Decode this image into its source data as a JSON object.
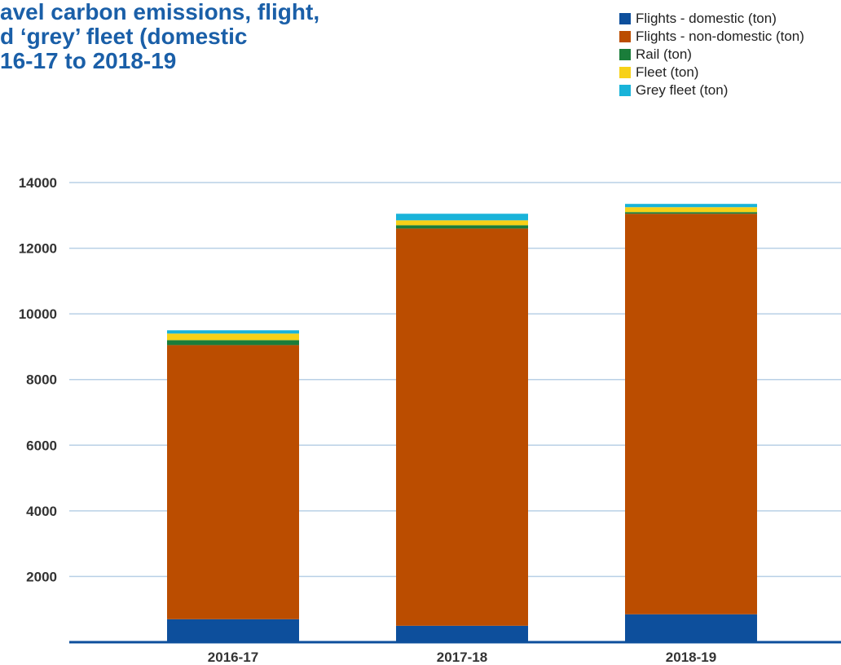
{
  "chart_data": {
    "type": "bar",
    "stacked": true,
    "title_lines": [
      "avel carbon emissions, flight,",
      "d ‘grey’ fleet (domestic",
      "16-17 to 2018-19"
    ],
    "xlabel": "",
    "ylabel": "",
    "ylim": [
      0,
      14000
    ],
    "yticks": [
      2000,
      4000,
      6000,
      8000,
      10000,
      12000,
      14000
    ],
    "grid": true,
    "legend_position": "top-right",
    "categories": [
      "2016-17",
      "2017-18",
      "2018-19"
    ],
    "series": [
      {
        "name": "Flights - domestic (ton)",
        "color": "#0d4f9c",
        "values": [
          700,
          500,
          850
        ]
      },
      {
        "name": "Flights - non-domestic (ton)",
        "color": "#bb4d00",
        "values": [
          8350,
          12100,
          12200
        ]
      },
      {
        "name": "Rail (ton)",
        "color": "#1a7d3a",
        "values": [
          150,
          100,
          50
        ]
      },
      {
        "name": "Fleet (ton)",
        "color": "#f7d117",
        "values": [
          200,
          150,
          150
        ]
      },
      {
        "name": "Grey fleet (ton)",
        "color": "#19b3d9",
        "values": [
          100,
          200,
          100
        ]
      }
    ]
  }
}
